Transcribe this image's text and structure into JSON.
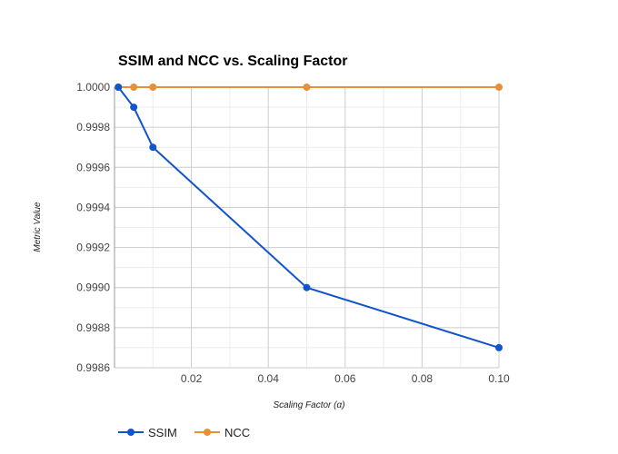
{
  "chart_data": {
    "type": "line",
    "title": "SSIM and NCC vs. Scaling Factor",
    "xlabel": "Scaling Factor (α)",
    "ylabel": "Metric Value",
    "x": [
      0.001,
      0.005,
      0.01,
      0.05,
      0.1
    ],
    "xlim": [
      0,
      0.1
    ],
    "ylim": [
      0.9986,
      1.0
    ],
    "x_ticks": [
      "0.02",
      "0.04",
      "0.06",
      "0.08",
      "0.10"
    ],
    "y_ticks": [
      "0.9986",
      "0.9988",
      "0.9990",
      "0.9992",
      "0.9994",
      "0.9996",
      "0.9998",
      "1.0000"
    ],
    "grid": true,
    "legend_position": "bottom-left",
    "series": [
      {
        "name": "SSIM",
        "color": "#1155cc",
        "values": [
          1.0,
          0.9999,
          0.9997,
          0.999,
          0.9987
        ]
      },
      {
        "name": "NCC",
        "color": "#e69138",
        "values": [
          1.0,
          1.0,
          1.0,
          1.0,
          1.0
        ]
      }
    ]
  }
}
